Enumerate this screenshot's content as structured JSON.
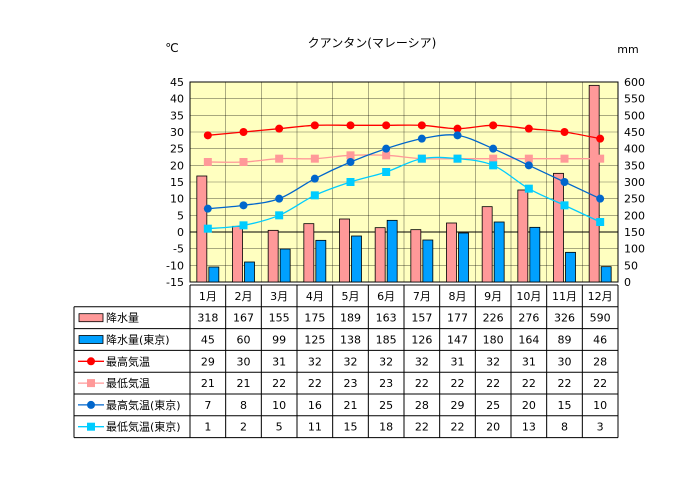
{
  "chart_data": {
    "type": "bar",
    "title": "クアンタン(マレーシア)",
    "left_unit": "℃",
    "right_unit": "mm",
    "categories": [
      "1月",
      "2月",
      "3月",
      "4月",
      "5月",
      "6月",
      "7月",
      "8月",
      "9月",
      "10月",
      "11月",
      "12月"
    ],
    "temp_axis": {
      "min": -15,
      "max": 45,
      "ticks": [
        45,
        40,
        35,
        30,
        25,
        20,
        15,
        10,
        5,
        0,
        -5,
        -10,
        -15
      ]
    },
    "precip_axis": {
      "min": 0,
      "max": 600,
      "ticks": [
        600,
        550,
        500,
        450,
        400,
        350,
        300,
        250,
        200,
        150,
        100,
        50,
        0
      ]
    },
    "grid": true,
    "plot_background": "#ffffc0",
    "series": [
      {
        "name": "降水量",
        "kind": "bar",
        "axis": "precip",
        "color": "#ff9999",
        "values": [
          318,
          167,
          155,
          175,
          189,
          163,
          157,
          177,
          226,
          276,
          326,
          590
        ]
      },
      {
        "name": "降水量(東京)",
        "kind": "bar",
        "axis": "precip",
        "color": "#00a0ff",
        "values": [
          45,
          60,
          99,
          125,
          138,
          185,
          126,
          147,
          180,
          164,
          89,
          46
        ]
      },
      {
        "name": "最高気温",
        "kind": "line",
        "axis": "temp",
        "color": "#ff0000",
        "marker": "circle",
        "values": [
          29,
          30,
          31,
          32,
          32,
          32,
          32,
          31,
          32,
          31,
          30,
          28
        ]
      },
      {
        "name": "最低気温",
        "kind": "line",
        "axis": "temp",
        "color": "#ff9999",
        "marker": "square",
        "values": [
          21,
          21,
          22,
          22,
          23,
          23,
          22,
          22,
          22,
          22,
          22,
          22
        ]
      },
      {
        "name": "最高気温(東京)",
        "kind": "line",
        "axis": "temp",
        "color": "#0066cc",
        "marker": "circle",
        "values": [
          7,
          8,
          10,
          16,
          21,
          25,
          28,
          29,
          25,
          20,
          15,
          10
        ]
      },
      {
        "name": "最低気温(東京)",
        "kind": "line",
        "axis": "temp",
        "color": "#00ccff",
        "marker": "square",
        "values": [
          1,
          2,
          5,
          11,
          15,
          18,
          22,
          22,
          20,
          13,
          8,
          3
        ]
      }
    ]
  }
}
